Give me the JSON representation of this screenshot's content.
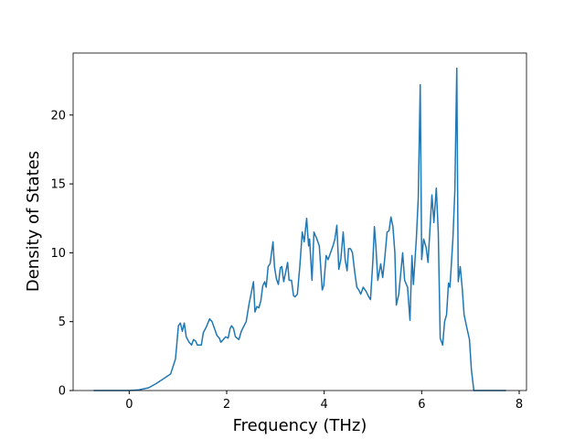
{
  "chart_data": {
    "type": "line",
    "x_label": "Frequency (THz)",
    "y_label": "Density of States",
    "x": [
      -0.73,
      0,
      0.2,
      0.4,
      0.55,
      0.7,
      0.85,
      0.95,
      1.01,
      1.05,
      1.09,
      1.13,
      1.17,
      1.23,
      1.28,
      1.32,
      1.36,
      1.4,
      1.48,
      1.52,
      1.58,
      1.65,
      1.7,
      1.75,
      1.8,
      1.85,
      1.88,
      1.93,
      1.98,
      2.03,
      2.07,
      2.1,
      2.14,
      2.18,
      2.25,
      2.3,
      2.37,
      2.4,
      2.46,
      2.55,
      2.58,
      2.62,
      2.66,
      2.7,
      2.74,
      2.78,
      2.81,
      2.85,
      2.89,
      2.95,
      2.98,
      3.02,
      3.06,
      3.1,
      3.13,
      3.17,
      3.25,
      3.28,
      3.33,
      3.37,
      3.4,
      3.45,
      3.5,
      3.55,
      3.59,
      3.64,
      3.68,
      3.7,
      3.75,
      3.79,
      3.85,
      3.9,
      3.96,
      3.99,
      4.04,
      4.08,
      4.13,
      4.18,
      4.22,
      4.26,
      4.3,
      4.34,
      4.39,
      4.43,
      4.47,
      4.5,
      4.54,
      4.58,
      4.63,
      4.67,
      4.71,
      4.75,
      4.8,
      4.86,
      4.9,
      4.95,
      5.0,
      5.03,
      5.06,
      5.1,
      5.16,
      5.2,
      5.24,
      5.29,
      5.33,
      5.37,
      5.41,
      5.45,
      5.48,
      5.53,
      5.61,
      5.65,
      5.71,
      5.76,
      5.8,
      5.83,
      5.89,
      5.93,
      5.97,
      6.0,
      6.04,
      6.09,
      6.13,
      6.21,
      6.25,
      6.3,
      6.34,
      6.38,
      6.43,
      6.47,
      6.51,
      6.55,
      6.58,
      6.64,
      6.68,
      6.72,
      6.75,
      6.79,
      6.83,
      6.87,
      6.93,
      6.98,
      7.02,
      7.07,
      7.73
    ],
    "values": [
      0,
      0,
      0.05,
      0.2,
      0.5,
      0.85,
      1.2,
      2.3,
      4.7,
      4.9,
      4.3,
      4.9,
      3.9,
      3.5,
      3.3,
      3.7,
      3.6,
      3.3,
      3.3,
      4.2,
      4.6,
      5.2,
      5.0,
      4.5,
      4.0,
      3.8,
      3.5,
      3.7,
      3.9,
      3.8,
      4.5,
      4.7,
      4.5,
      3.9,
      3.7,
      4.3,
      4.8,
      5.0,
      6.3,
      7.9,
      5.7,
      6.1,
      6.0,
      6.5,
      7.6,
      7.9,
      7.5,
      9.0,
      9.2,
      10.8,
      9.0,
      8.1,
      7.7,
      8.9,
      9.0,
      7.9,
      9.3,
      8.0,
      8.0,
      6.9,
      6.8,
      7.0,
      9.0,
      11.5,
      10.8,
      12.5,
      10.5,
      11.0,
      8.0,
      11.5,
      11.0,
      10.5,
      7.3,
      7.6,
      9.8,
      9.5,
      10.0,
      10.5,
      11.0,
      12.0,
      8.8,
      9.5,
      11.5,
      9.5,
      8.7,
      10.3,
      10.3,
      10.0,
      8.5,
      7.5,
      7.3,
      7.0,
      7.5,
      7.2,
      6.9,
      6.6,
      9.5,
      11.9,
      10.5,
      8.0,
      9.2,
      8.2,
      9.5,
      11.5,
      11.6,
      12.6,
      11.9,
      10.0,
      6.2,
      7.0,
      10.0,
      8.0,
      7.5,
      5.1,
      9.8,
      7.7,
      11.0,
      14.0,
      22.2,
      9.5,
      11.0,
      10.4,
      9.3,
      14.2,
      12.2,
      14.7,
      11.5,
      3.8,
      3.3,
      5.0,
      5.5,
      7.8,
      7.5,
      11.0,
      14.5,
      23.4,
      7.9,
      9.0,
      7.5,
      5.5,
      4.5,
      3.7,
      1.5,
      0,
      0
    ],
    "color": "#1f77b4",
    "xlim": [
      -1.15,
      8.15
    ],
    "xticks": [
      0,
      2,
      4,
      6,
      8
    ],
    "ylim": [
      0,
      24.5
    ],
    "yticks": [
      0,
      5,
      10,
      15,
      20
    ],
    "grid": false
  }
}
